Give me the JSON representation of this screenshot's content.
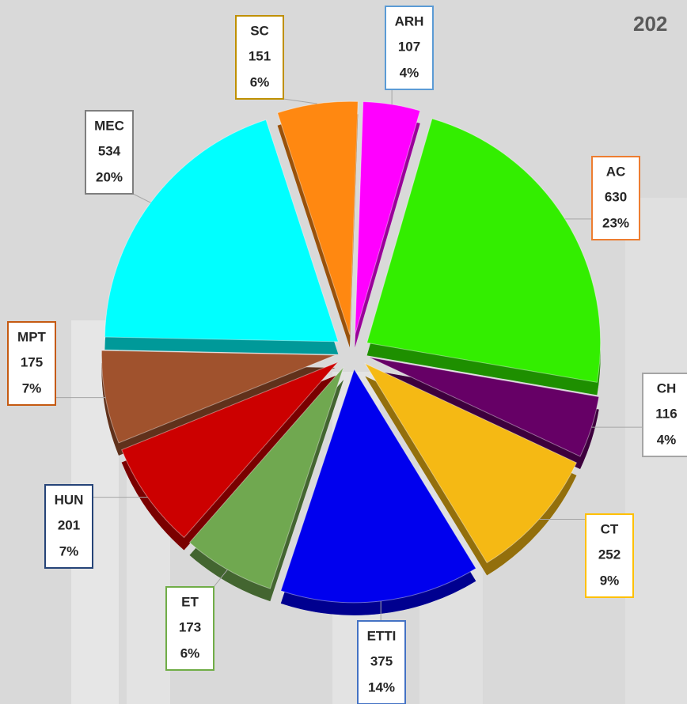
{
  "chart_data": {
    "type": "pie",
    "title": "202",
    "categories": [
      "ARH",
      "AC",
      "CH",
      "CT",
      "ETTI",
      "ET",
      "HUN",
      "MPT",
      "MEC",
      "SC"
    ],
    "values": [
      107,
      630,
      116,
      252,
      375,
      173,
      201,
      175,
      534,
      151
    ],
    "percent_labels": [
      "4%",
      "23%",
      "4%",
      "9%",
      "14%",
      "6%",
      "7%",
      "7%",
      "20%",
      "6%"
    ],
    "colors": [
      "#ff00ff",
      "#33ee00",
      "#660066",
      "#f5b914",
      "#0000ee",
      "#70a850",
      "#cc0000",
      "#a0522d",
      "#00ffff",
      "#ff8811"
    ],
    "label_borders": [
      "#5b9bd5",
      "#ed7d31",
      "#a5a5a5",
      "#ffc000",
      "#4472c4",
      "#70ad47",
      "#264478",
      "#c55a11",
      "#7f7f7f",
      "#bf9000"
    ]
  }
}
